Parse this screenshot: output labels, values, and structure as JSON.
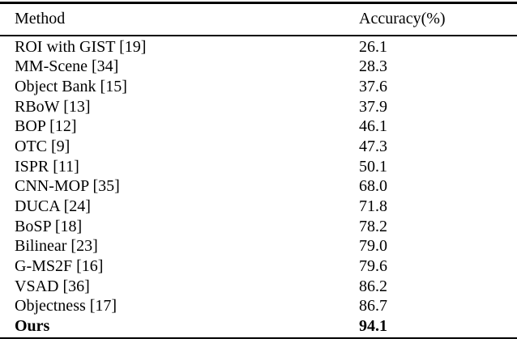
{
  "table": {
    "headers": {
      "method": "Method",
      "accuracy": "Accuracy(%)"
    },
    "rows": [
      {
        "method": "ROI with GIST [19]",
        "accuracy": "26.1"
      },
      {
        "method": "MM-Scene [34]",
        "accuracy": "28.3"
      },
      {
        "method": "Object Bank [15]",
        "accuracy": "37.6"
      },
      {
        "method": "RBoW [13]",
        "accuracy": "37.9"
      },
      {
        "method": "BOP [12]",
        "accuracy": "46.1"
      },
      {
        "method": "OTC [9]",
        "accuracy": "47.3"
      },
      {
        "method": "ISPR [11]",
        "accuracy": "50.1"
      },
      {
        "method": "CNN-MOP [35]",
        "accuracy": "68.0"
      },
      {
        "method": "DUCA [24]",
        "accuracy": "71.8"
      },
      {
        "method": "BoSP [18]",
        "accuracy": "78.2"
      },
      {
        "method": "Bilinear [23]",
        "accuracy": "79.0"
      },
      {
        "method": "G-MS2F [16]",
        "accuracy": "79.6"
      },
      {
        "method": "VSAD [36]",
        "accuracy": "86.2"
      },
      {
        "method": "Objectness [17]",
        "accuracy": "86.7"
      },
      {
        "method": "Ours",
        "accuracy": "94.1",
        "emphasis": "bold"
      }
    ]
  },
  "colors": {
    "background": "#ffffff",
    "text": "#000000",
    "rule": "#000000"
  }
}
